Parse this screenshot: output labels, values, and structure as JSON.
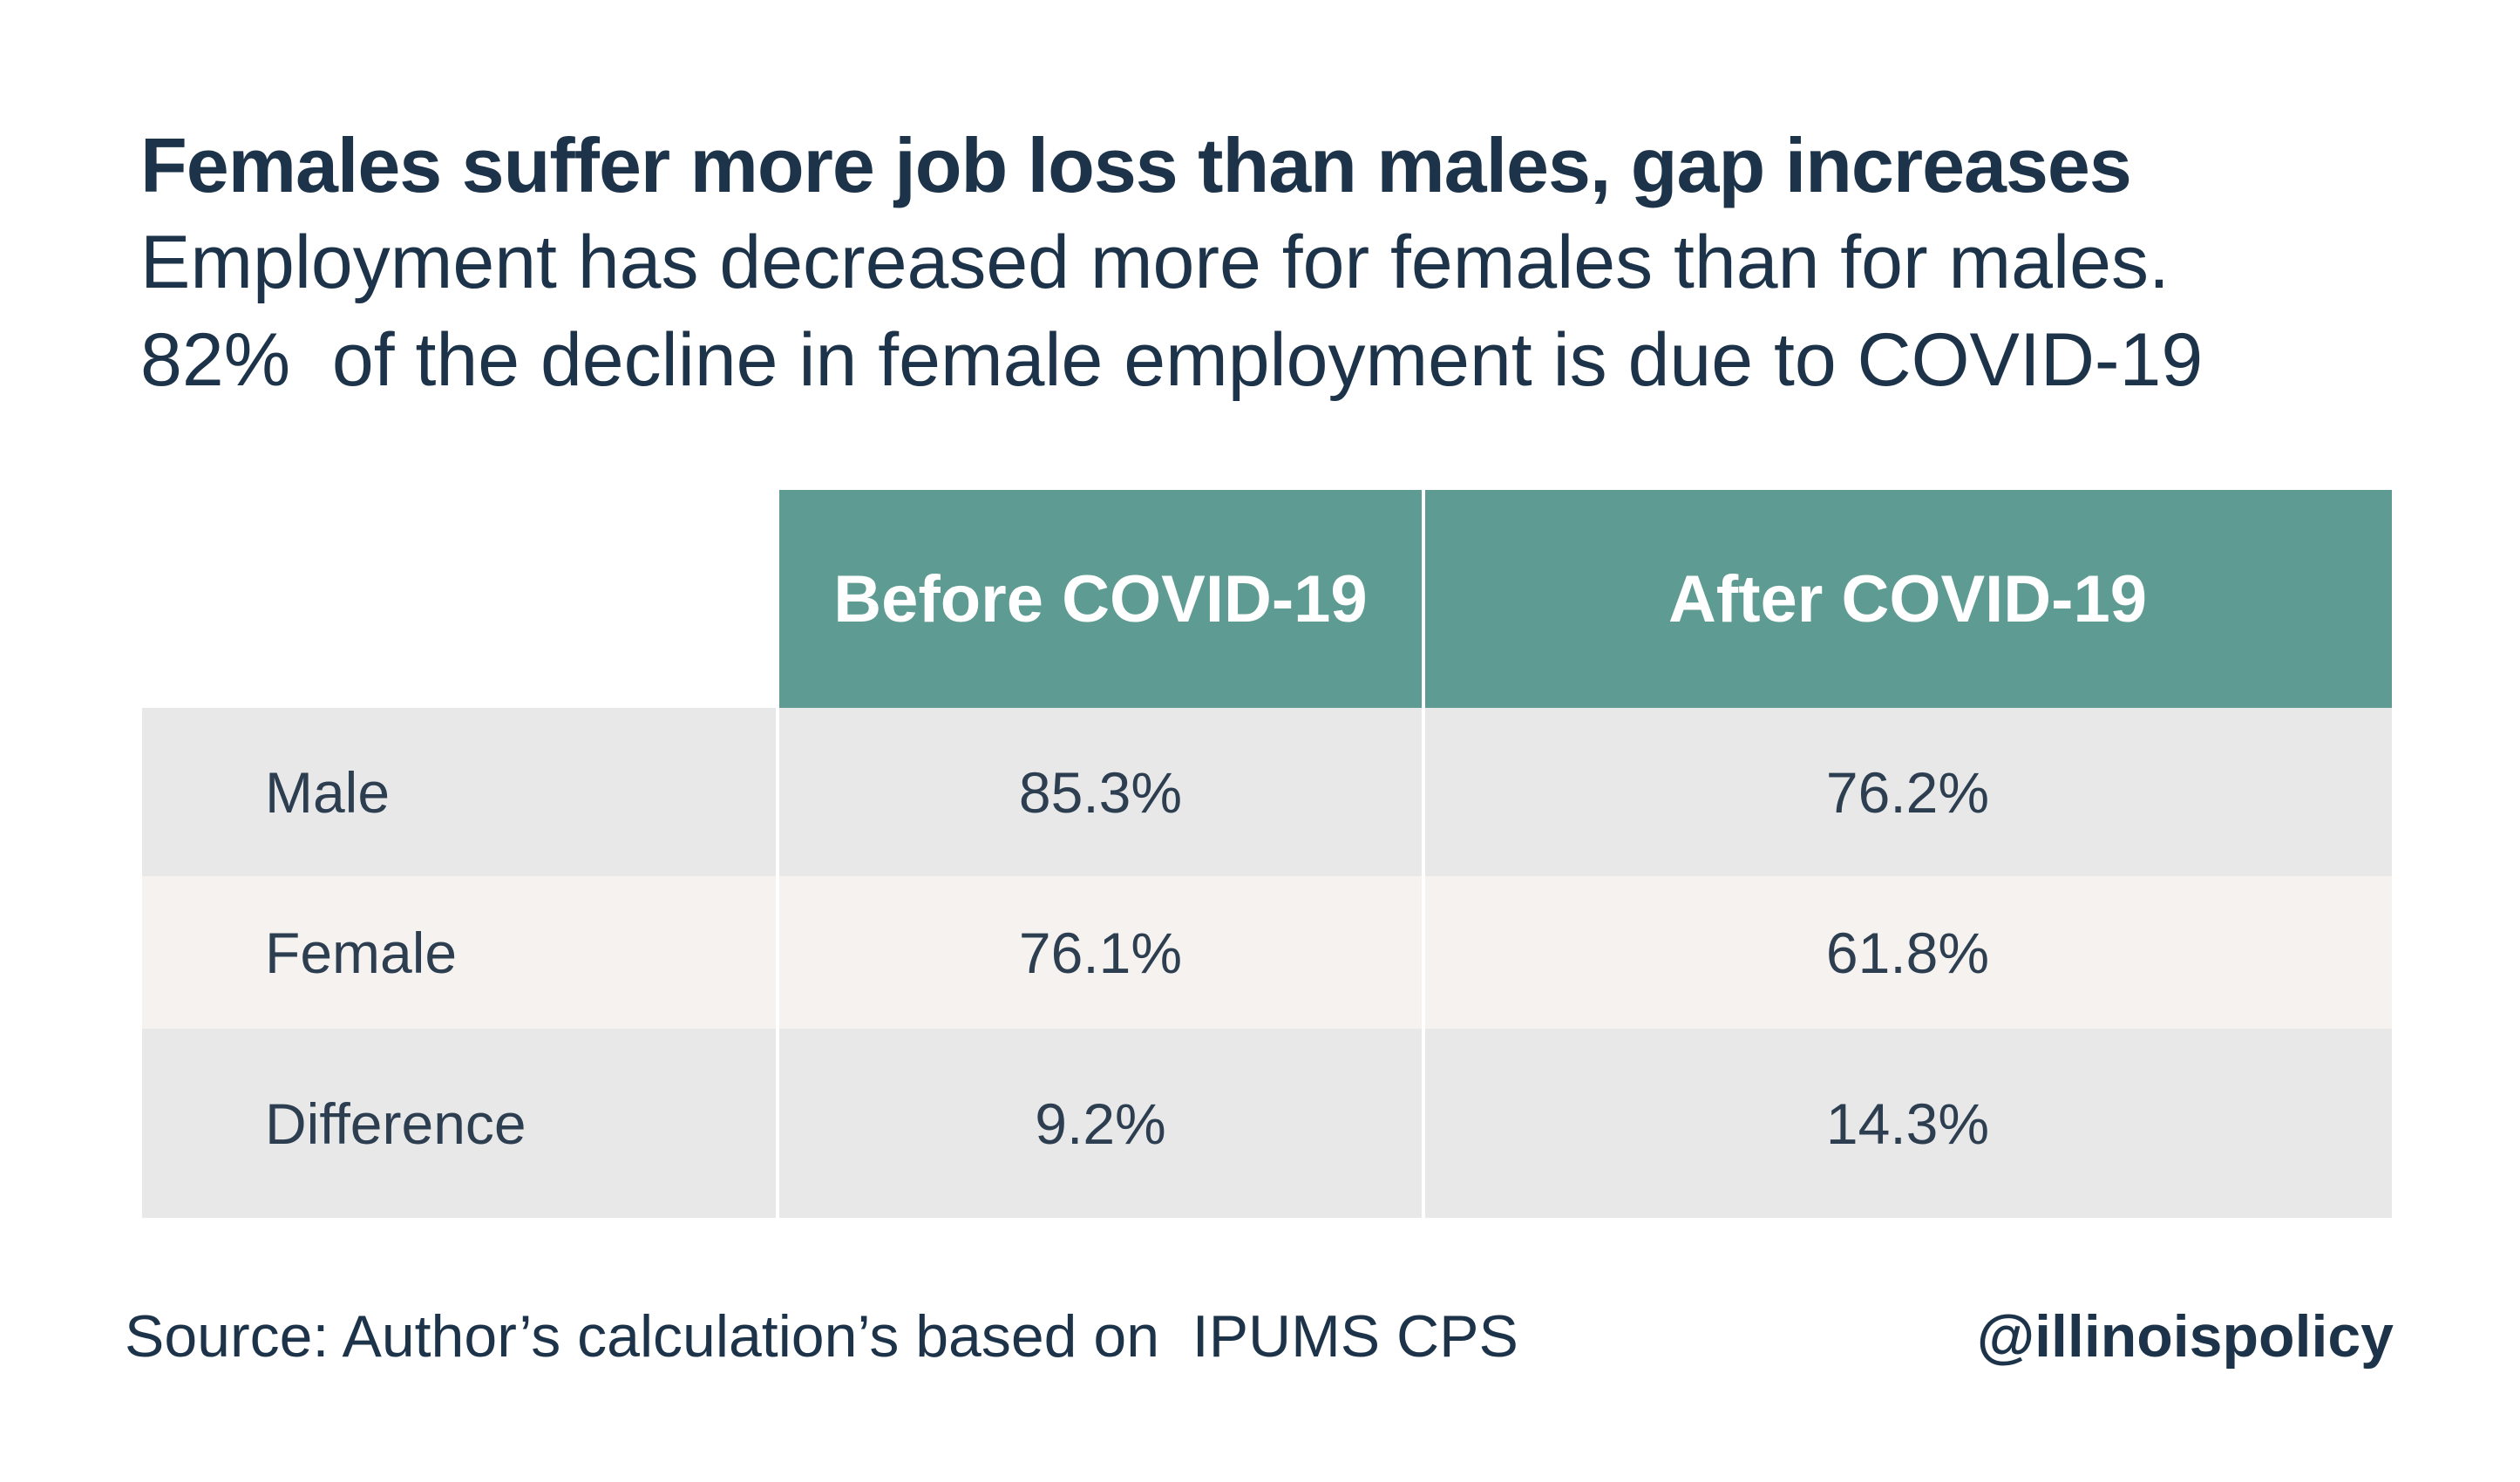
{
  "title": "Females suffer more job loss than males, gap increases",
  "subtitle_lines": [
    "Employment has decreased more for females than for males.",
    "82%  of the decline in female employment is due to COVID-19"
  ],
  "chart_data": {
    "type": "table",
    "columns": [
      "",
      "Before COVID-19",
      "After COVID-19"
    ],
    "rows": [
      {
        "label": "Male",
        "values": [
          "85.3%",
          "76.2%"
        ]
      },
      {
        "label": "Female",
        "values": [
          "76.1%",
          "61.8%"
        ]
      },
      {
        "label": "Difference",
        "values": [
          "9.2%",
          "14.3%"
        ]
      }
    ]
  },
  "footer": {
    "source": "Source: Author’s calculation’s based on  IPUMS CPS",
    "handle": "@illinoispolicy"
  },
  "colors": {
    "header_bg": "#5e9c93",
    "row_gray": "#e9e8e8",
    "row_cream": "#f5f2ef",
    "text_dark": "#1c3349"
  }
}
